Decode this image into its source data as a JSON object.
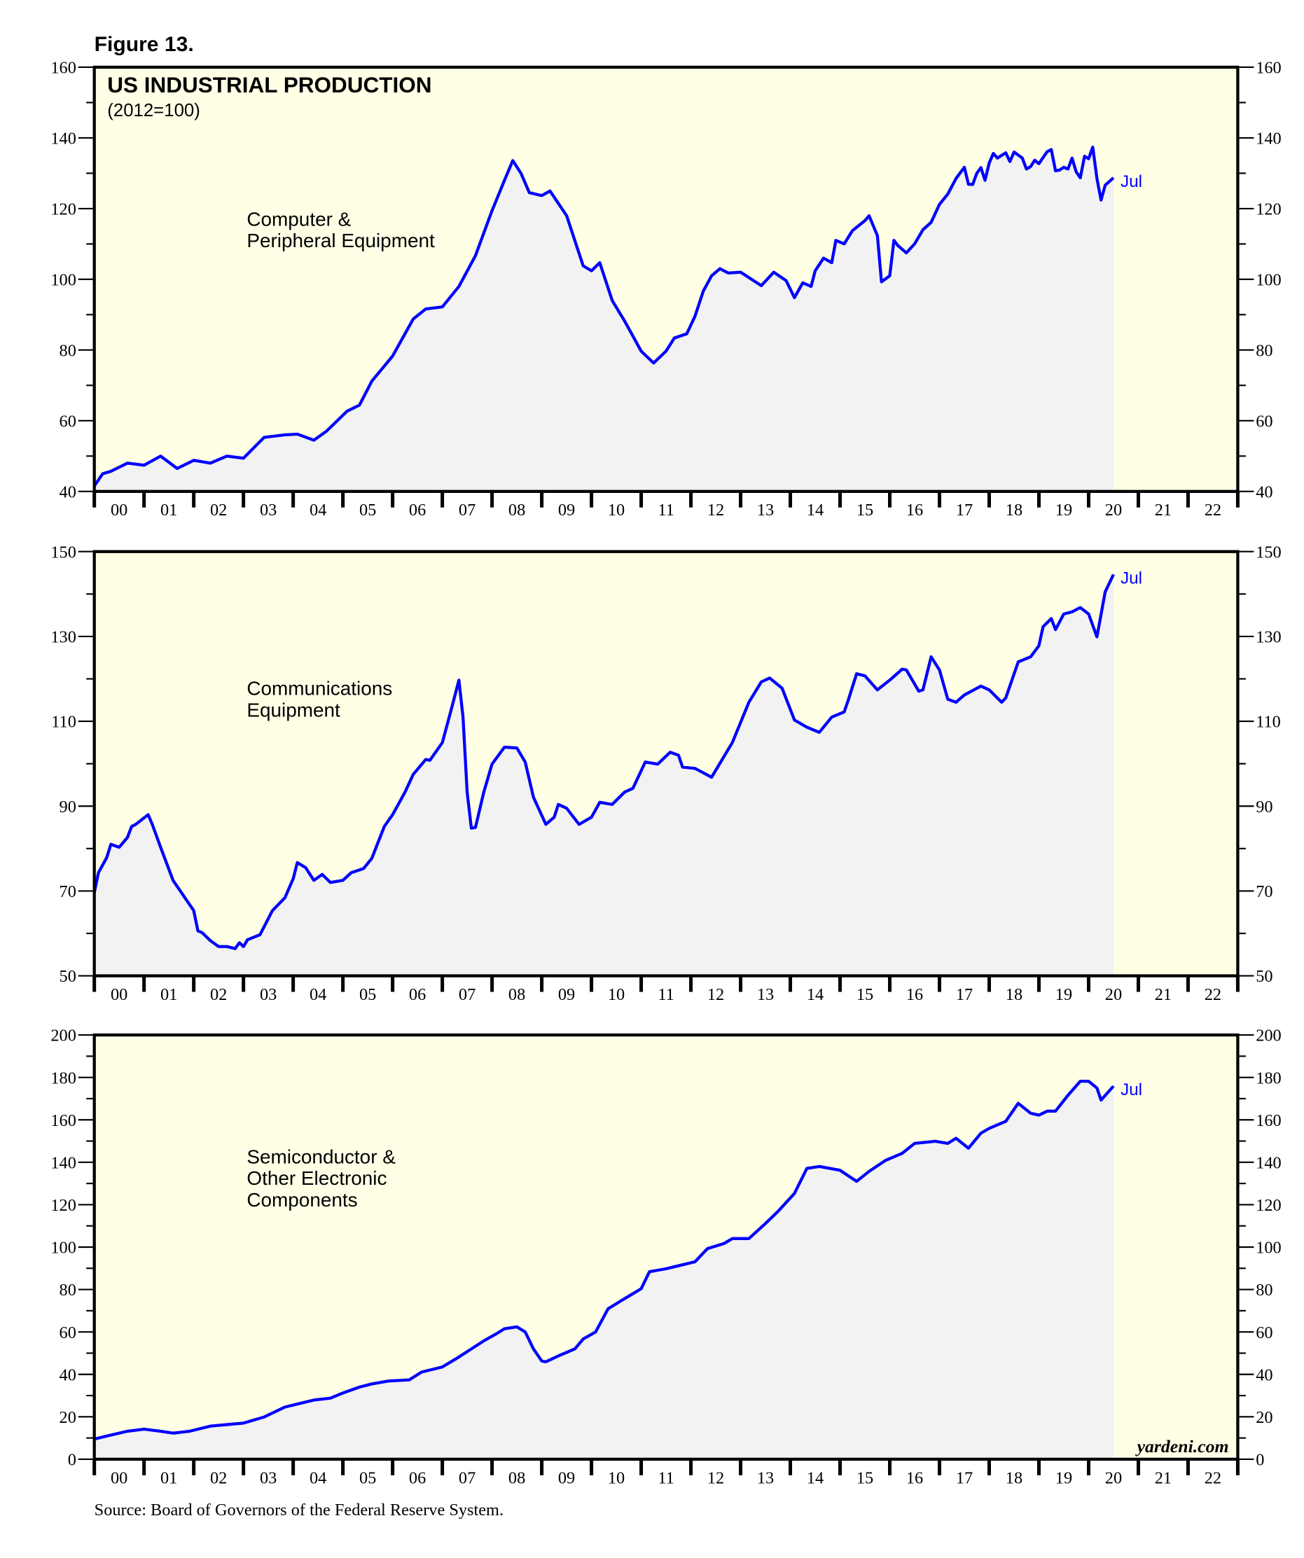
{
  "figure_label": "Figure 13.",
  "source": "Source: Board of Governors of the Federal Reserve System.",
  "watermark": "yardeni.com",
  "colors": {
    "line": "#0000ff",
    "fill": "#f2f2f2",
    "background": "#ffffe6",
    "frame": "#000000"
  },
  "chart_data": [
    {
      "type": "area",
      "title": "US INDUSTRIAL PRODUCTION",
      "subtitle": "(2012=100)",
      "series_label": [
        "Computer &",
        "Peripheral Equipment"
      ],
      "end_label": "Jul",
      "ylim": [
        40,
        160
      ],
      "yticks": [
        40,
        60,
        80,
        100,
        120,
        140,
        160
      ],
      "yminor": 10,
      "xlim": [
        "2000-01",
        "2023-01"
      ],
      "xtick_labels": [
        "00",
        "01",
        "02",
        "03",
        "04",
        "05",
        "06",
        "07",
        "08",
        "09",
        "10",
        "11",
        "12",
        "13",
        "14",
        "15",
        "16",
        "17",
        "18",
        "19",
        "20",
        "21",
        "22"
      ],
      "points": [
        [
          "2000-01",
          41.5
        ],
        [
          "2000-03",
          45
        ],
        [
          "2000-05",
          45.7
        ],
        [
          "2000-09",
          48
        ],
        [
          "2001-01",
          47.4
        ],
        [
          "2001-05",
          50
        ],
        [
          "2001-09",
          46.5
        ],
        [
          "2002-01",
          48.8
        ],
        [
          "2002-05",
          48
        ],
        [
          "2002-09",
          50
        ],
        [
          "2003-01",
          49.4
        ],
        [
          "2003-06",
          55.3
        ],
        [
          "2003-11",
          56
        ],
        [
          "2004-02",
          56.2
        ],
        [
          "2004-06",
          54.5
        ],
        [
          "2004-09",
          57
        ],
        [
          "2005-02",
          62.7
        ],
        [
          "2005-05",
          64.4
        ],
        [
          "2005-08",
          71.2
        ],
        [
          "2006-01",
          78.3
        ],
        [
          "2006-06",
          88.8
        ],
        [
          "2006-09",
          91.6
        ],
        [
          "2007-01",
          92.2
        ],
        [
          "2007-05",
          98
        ],
        [
          "2007-09",
          106.7
        ],
        [
          "2008-01",
          119.4
        ],
        [
          "2008-04",
          128
        ],
        [
          "2008-06",
          133.6
        ],
        [
          "2008-08",
          130
        ],
        [
          "2008-10",
          124.5
        ],
        [
          "2009-01",
          123.7
        ],
        [
          "2009-03",
          125
        ],
        [
          "2009-07",
          118
        ],
        [
          "2009-11",
          103.8
        ],
        [
          "2010-01",
          102.4
        ],
        [
          "2010-03",
          104.7
        ],
        [
          "2010-06",
          94
        ],
        [
          "2010-09",
          88.2
        ],
        [
          "2011-01",
          79.7
        ],
        [
          "2011-04",
          76.3
        ],
        [
          "2011-07",
          79.7
        ],
        [
          "2011-09",
          83.4
        ],
        [
          "2011-12",
          84.6
        ],
        [
          "2012-02",
          89.6
        ],
        [
          "2012-04",
          96.7
        ],
        [
          "2012-06",
          101
        ],
        [
          "2012-08",
          103
        ],
        [
          "2012-10",
          101.8
        ],
        [
          "2013-01",
          102
        ],
        [
          "2013-06",
          98.2
        ],
        [
          "2013-09",
          102
        ],
        [
          "2013-12",
          99.6
        ],
        [
          "2014-02",
          94.8
        ],
        [
          "2014-04",
          99
        ],
        [
          "2014-06",
          98
        ],
        [
          "2014-07",
          102.4
        ],
        [
          "2014-09",
          106
        ],
        [
          "2014-11",
          104.7
        ],
        [
          "2014-12",
          111
        ],
        [
          "2015-02",
          110
        ],
        [
          "2015-04",
          113.8
        ],
        [
          "2015-07",
          116.6
        ],
        [
          "2015-08",
          118
        ],
        [
          "2015-10",
          112.4
        ],
        [
          "2015-11",
          99.3
        ],
        [
          "2016-01",
          101
        ],
        [
          "2016-02",
          111
        ],
        [
          "2016-03",
          109.5
        ],
        [
          "2016-05",
          107.5
        ],
        [
          "2016-07",
          110
        ],
        [
          "2016-09",
          114
        ],
        [
          "2016-11",
          116.1
        ],
        [
          "2017-01",
          121.2
        ],
        [
          "2017-03",
          124.1
        ],
        [
          "2017-05",
          128.5
        ],
        [
          "2017-07",
          131.7
        ],
        [
          "2017-08",
          126.9
        ],
        [
          "2017-09",
          126.8
        ],
        [
          "2017-10",
          130
        ],
        [
          "2017-11",
          131.6
        ],
        [
          "2017-12",
          128
        ],
        [
          "2018-01",
          132.9
        ],
        [
          "2018-02",
          135.6
        ],
        [
          "2018-03",
          134.3
        ],
        [
          "2018-05",
          135.8
        ],
        [
          "2018-06",
          133.3
        ],
        [
          "2018-07",
          136
        ],
        [
          "2018-09",
          134.3
        ],
        [
          "2018-10",
          131.2
        ],
        [
          "2018-11",
          131.9
        ],
        [
          "2018-12",
          133.7
        ],
        [
          "2019-01",
          132.7
        ],
        [
          "2019-03",
          136.1
        ],
        [
          "2019-04",
          136.7
        ],
        [
          "2019-05",
          130.7
        ],
        [
          "2019-06",
          130.9
        ],
        [
          "2019-07",
          131.7
        ],
        [
          "2019-08",
          131.2
        ],
        [
          "2019-09",
          134.3
        ],
        [
          "2019-10",
          130.4
        ],
        [
          "2019-11",
          128.7
        ],
        [
          "2019-12",
          134.8
        ],
        [
          "2020-01",
          134.1
        ],
        [
          "2020-02",
          137.4
        ],
        [
          "2020-03",
          128.5
        ],
        [
          "2020-04",
          122.4
        ],
        [
          "2020-05",
          126.6
        ],
        [
          "2020-07",
          128.7
        ]
      ]
    },
    {
      "type": "area",
      "series_label": [
        "Communications",
        "Equipment"
      ],
      "end_label": "Jul",
      "ylim": [
        50,
        150
      ],
      "yticks": [
        50,
        70,
        90,
        110,
        130,
        150
      ],
      "yminor": 10,
      "xlim": [
        "2000-01",
        "2023-01"
      ],
      "xtick_labels": [
        "00",
        "01",
        "02",
        "03",
        "04",
        "05",
        "06",
        "07",
        "08",
        "09",
        "10",
        "11",
        "12",
        "13",
        "14",
        "15",
        "16",
        "17",
        "18",
        "19",
        "20",
        "21",
        "22"
      ],
      "points": [
        [
          "2000-01",
          69.6
        ],
        [
          "2000-02",
          74.3
        ],
        [
          "2000-04",
          77.9
        ],
        [
          "2000-05",
          81
        ],
        [
          "2000-07",
          80.3
        ],
        [
          "2000-09",
          82.6
        ],
        [
          "2000-10",
          85.2
        ],
        [
          "2000-11",
          85.7
        ],
        [
          "2001-02",
          88
        ],
        [
          "2001-03",
          85.7
        ],
        [
          "2001-05",
          80.3
        ],
        [
          "2001-08",
          72.5
        ],
        [
          "2001-11",
          68.2
        ],
        [
          "2002-01",
          65.4
        ],
        [
          "2002-02",
          60.6
        ],
        [
          "2002-03",
          60.2
        ],
        [
          "2002-05",
          58.3
        ],
        [
          "2002-07",
          56.9
        ],
        [
          "2002-09",
          56.9
        ],
        [
          "2002-11",
          56.4
        ],
        [
          "2002-12",
          57.8
        ],
        [
          "2003-01",
          56.9
        ],
        [
          "2003-02",
          58.5
        ],
        [
          "2003-05",
          59.7
        ],
        [
          "2003-08",
          65.4
        ],
        [
          "2003-11",
          68.4
        ],
        [
          "2004-01",
          72.9
        ],
        [
          "2004-02",
          76.7
        ],
        [
          "2004-04",
          75.5
        ],
        [
          "2004-06",
          72.5
        ],
        [
          "2004-08",
          73.9
        ],
        [
          "2004-10",
          72
        ],
        [
          "2005-01",
          72.5
        ],
        [
          "2005-03",
          74.3
        ],
        [
          "2005-06",
          75.3
        ],
        [
          "2005-08",
          77.7
        ],
        [
          "2005-11",
          85.2
        ],
        [
          "2006-01",
          88
        ],
        [
          "2006-04",
          93.3
        ],
        [
          "2006-06",
          97.5
        ],
        [
          "2006-09",
          101
        ],
        [
          "2006-10",
          100.8
        ],
        [
          "2007-01",
          105
        ],
        [
          "2007-03",
          112.2
        ],
        [
          "2007-05",
          119.7
        ],
        [
          "2007-06",
          111
        ],
        [
          "2007-07",
          93.3
        ],
        [
          "2007-08",
          84.8
        ],
        [
          "2007-09",
          85
        ],
        [
          "2007-11",
          93.3
        ],
        [
          "2008-01",
          99.9
        ],
        [
          "2008-04",
          103.9
        ],
        [
          "2008-07",
          103.7
        ],
        [
          "2008-09",
          100.4
        ],
        [
          "2008-11",
          92.1
        ],
        [
          "2009-02",
          85.7
        ],
        [
          "2009-04",
          87.4
        ],
        [
          "2009-05",
          90.4
        ],
        [
          "2009-07",
          89.5
        ],
        [
          "2009-10",
          85.7
        ],
        [
          "2010-01",
          87.4
        ],
        [
          "2010-03",
          90.9
        ],
        [
          "2010-06",
          90.4
        ],
        [
          "2010-09",
          93.3
        ],
        [
          "2010-11",
          94.2
        ],
        [
          "2011-02",
          100.4
        ],
        [
          "2011-05",
          99.9
        ],
        [
          "2011-08",
          102.7
        ],
        [
          "2011-10",
          102
        ],
        [
          "2011-11",
          99.2
        ],
        [
          "2012-02",
          98.9
        ],
        [
          "2012-06",
          96.8
        ],
        [
          "2012-11",
          105
        ],
        [
          "2013-03",
          114.5
        ],
        [
          "2013-06",
          119.3
        ],
        [
          "2013-08",
          120.2
        ],
        [
          "2013-11",
          117.8
        ],
        [
          "2014-02",
          110.3
        ],
        [
          "2014-05",
          108.6
        ],
        [
          "2014-08",
          107.4
        ],
        [
          "2014-11",
          111
        ],
        [
          "2015-02",
          112.2
        ],
        [
          "2015-03",
          115
        ],
        [
          "2015-05",
          121.2
        ],
        [
          "2015-07",
          120.7
        ],
        [
          "2015-10",
          117.4
        ],
        [
          "2016-01",
          119.7
        ],
        [
          "2016-04",
          122.3
        ],
        [
          "2016-05",
          122.1
        ],
        [
          "2016-08",
          117.1
        ],
        [
          "2016-09",
          117.4
        ],
        [
          "2016-11",
          125.2
        ],
        [
          "2017-01",
          122.1
        ],
        [
          "2017-03",
          115.2
        ],
        [
          "2017-05",
          114.5
        ],
        [
          "2017-07",
          116.2
        ],
        [
          "2017-11",
          118.3
        ],
        [
          "2018-01",
          117.4
        ],
        [
          "2018-04",
          114.5
        ],
        [
          "2018-05",
          115.5
        ],
        [
          "2018-08",
          124
        ],
        [
          "2018-11",
          125.2
        ],
        [
          "2019-01",
          127.8
        ],
        [
          "2019-02",
          132.3
        ],
        [
          "2019-04",
          134.2
        ],
        [
          "2019-05",
          131.6
        ],
        [
          "2019-07",
          135.3
        ],
        [
          "2019-09",
          135.8
        ],
        [
          "2019-11",
          136.8
        ],
        [
          "2020-01",
          135.3
        ],
        [
          "2020-03",
          129.9
        ],
        [
          "2020-05",
          140.5
        ],
        [
          "2020-07",
          144.6
        ]
      ]
    },
    {
      "type": "area",
      "series_label": [
        "Semiconductor &",
        "Other Electronic",
        "Components"
      ],
      "end_label": "Jul",
      "ylim": [
        0,
        200
      ],
      "yticks": [
        0,
        20,
        40,
        60,
        80,
        100,
        120,
        140,
        160,
        180,
        200
      ],
      "yminor": 10,
      "xlim": [
        "2000-01",
        "2023-01"
      ],
      "xtick_labels": [
        "00",
        "01",
        "02",
        "03",
        "04",
        "05",
        "06",
        "07",
        "08",
        "09",
        "10",
        "11",
        "12",
        "13",
        "14",
        "15",
        "16",
        "17",
        "18",
        "19",
        "20",
        "21",
        "22"
      ],
      "points": [
        [
          "2000-01",
          9.5
        ],
        [
          "2000-04",
          10.9
        ],
        [
          "2000-09",
          13.2
        ],
        [
          "2001-01",
          14.2
        ],
        [
          "2001-05",
          13.2
        ],
        [
          "2001-08",
          12.3
        ],
        [
          "2001-12",
          13.2
        ],
        [
          "2002-05",
          15.6
        ],
        [
          "2002-10",
          16.5
        ],
        [
          "2003-01",
          17
        ],
        [
          "2003-06",
          19.9
        ],
        [
          "2003-11",
          24.6
        ],
        [
          "2004-02",
          26
        ],
        [
          "2004-06",
          27.9
        ],
        [
          "2004-10",
          28.8
        ],
        [
          "2005-01",
          31.2
        ],
        [
          "2005-05",
          34
        ],
        [
          "2005-08",
          35.5
        ],
        [
          "2005-12",
          36.9
        ],
        [
          "2006-05",
          37.4
        ],
        [
          "2006-08",
          41.1
        ],
        [
          "2007-01",
          43.5
        ],
        [
          "2007-05",
          48.2
        ],
        [
          "2007-08",
          52
        ],
        [
          "2007-11",
          55.8
        ],
        [
          "2008-02",
          59.1
        ],
        [
          "2008-04",
          61.5
        ],
        [
          "2008-07",
          62.4
        ],
        [
          "2008-09",
          60
        ],
        [
          "2008-11",
          52
        ],
        [
          "2009-01",
          46.3
        ],
        [
          "2009-02",
          45.9
        ],
        [
          "2009-05",
          48.7
        ],
        [
          "2009-09",
          52
        ],
        [
          "2009-11",
          56.7
        ],
        [
          "2010-02",
          60
        ],
        [
          "2010-05",
          70.9
        ],
        [
          "2010-09",
          75.7
        ],
        [
          "2011-01",
          80.4
        ],
        [
          "2011-03",
          88.4
        ],
        [
          "2011-07",
          89.8
        ],
        [
          "2011-10",
          91.2
        ],
        [
          "2012-02",
          93.1
        ],
        [
          "2012-05",
          99.3
        ],
        [
          "2012-09",
          101.7
        ],
        [
          "2012-11",
          104
        ],
        [
          "2013-03",
          104
        ],
        [
          "2013-07",
          111.1
        ],
        [
          "2013-10",
          116.8
        ],
        [
          "2014-02",
          125.3
        ],
        [
          "2014-05",
          137.1
        ],
        [
          "2014-08",
          138
        ],
        [
          "2015-01",
          136.2
        ],
        [
          "2015-05",
          131
        ],
        [
          "2015-08",
          135.7
        ],
        [
          "2015-12",
          140.9
        ],
        [
          "2016-04",
          144.2
        ],
        [
          "2016-07",
          148.9
        ],
        [
          "2016-12",
          149.9
        ],
        [
          "2017-03",
          148.9
        ],
        [
          "2017-05",
          151.3
        ],
        [
          "2017-08",
          146.6
        ],
        [
          "2017-11",
          153.7
        ],
        [
          "2018-01",
          156
        ],
        [
          "2018-05",
          159.3
        ],
        [
          "2018-08",
          167.8
        ],
        [
          "2018-11",
          163.1
        ],
        [
          "2019-01",
          162.2
        ],
        [
          "2019-03",
          164.1
        ],
        [
          "2019-05",
          164.1
        ],
        [
          "2019-08",
          171.6
        ],
        [
          "2019-11",
          178.2
        ],
        [
          "2020-01",
          178.2
        ],
        [
          "2020-03",
          175
        ],
        [
          "2020-04",
          169.3
        ],
        [
          "2020-07",
          175.9
        ]
      ]
    }
  ]
}
